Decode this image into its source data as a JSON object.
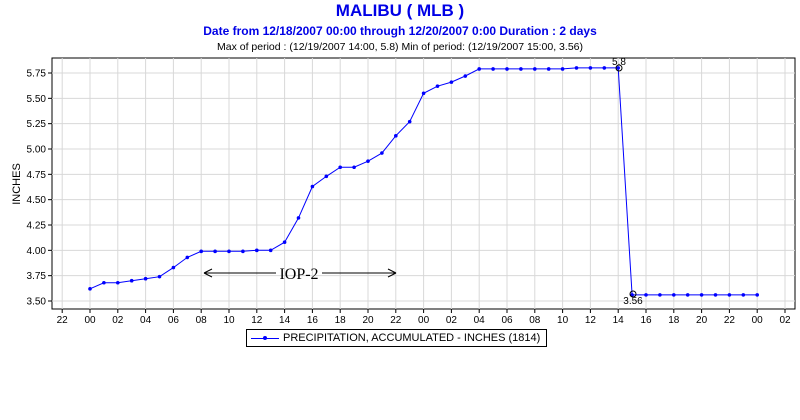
{
  "title": "MALIBU ( MLB )",
  "subtitle": "Date from 12/18/2007 00:00 through 12/20/2007 0:00 Duration : 2 days",
  "maxmin": "Max of period : (12/19/2007 14:00, 5.8)  Min of period: (12/19/2007 15:00,  3.56)",
  "legend_label": "PRECIPITATION, ACCUMULATED - INCHES (1814)",
  "annotation": "IOP-2",
  "max_label": "5.8",
  "min_label": "3.56",
  "colors": {
    "title": "#0000e6",
    "series": "#0000ff",
    "grid": "#d8d8d8"
  },
  "chart_data": {
    "type": "line",
    "ylabel": "INCHES",
    "ylim": [
      3.47,
      5.9
    ],
    "yticks": [
      3.5,
      3.75,
      4.0,
      4.25,
      4.5,
      4.75,
      5.0,
      5.25,
      5.5,
      5.75
    ],
    "ytick_labels": [
      "3.50",
      "3.75",
      "4.00",
      "4.25",
      "4.50",
      "4.75",
      "5.00",
      "5.25",
      "5.50",
      "5.75"
    ],
    "xtick_hours": [
      -2,
      0,
      2,
      4,
      6,
      8,
      10,
      12,
      14,
      16,
      18,
      20,
      22,
      24,
      26,
      28,
      30,
      32,
      34,
      36,
      38,
      40,
      42,
      44,
      46,
      48,
      50
    ],
    "xtick_labels": [
      "22",
      "00",
      "02",
      "04",
      "06",
      "08",
      "10",
      "12",
      "14",
      "16",
      "18",
      "20",
      "22",
      "00",
      "02",
      "04",
      "06",
      "08",
      "10",
      "12",
      "14",
      "16",
      "18",
      "20",
      "22",
      "00",
      "02"
    ],
    "grid": true,
    "legend_position": "bottom",
    "series": [
      {
        "name": "PRECIPITATION, ACCUMULATED - INCHES (1814)",
        "x": [
          0,
          1,
          2,
          3,
          4,
          5,
          6,
          7,
          8,
          9,
          10,
          11,
          12,
          13,
          14,
          15,
          16,
          17,
          18,
          19,
          20,
          21,
          22,
          23,
          24,
          25,
          26,
          27,
          28,
          29,
          30,
          31,
          32,
          33,
          34,
          35,
          36,
          37,
          38,
          39,
          40,
          41,
          42,
          43,
          44,
          45,
          46,
          47,
          48
        ],
        "y": [
          3.62,
          3.68,
          3.68,
          3.7,
          3.72,
          3.74,
          3.83,
          3.93,
          3.99,
          3.99,
          3.99,
          3.99,
          4.0,
          4.0,
          4.08,
          4.32,
          4.63,
          4.73,
          4.82,
          4.82,
          4.88,
          4.96,
          5.13,
          5.27,
          5.55,
          5.62,
          5.66,
          5.72,
          5.79,
          5.79,
          5.79,
          5.79,
          5.79,
          5.79,
          5.79,
          5.8,
          5.8,
          5.8,
          5.8,
          3.56,
          3.56,
          3.56,
          3.56,
          3.56,
          3.56,
          3.56,
          3.56,
          3.56,
          3.56
        ]
      }
    ]
  }
}
